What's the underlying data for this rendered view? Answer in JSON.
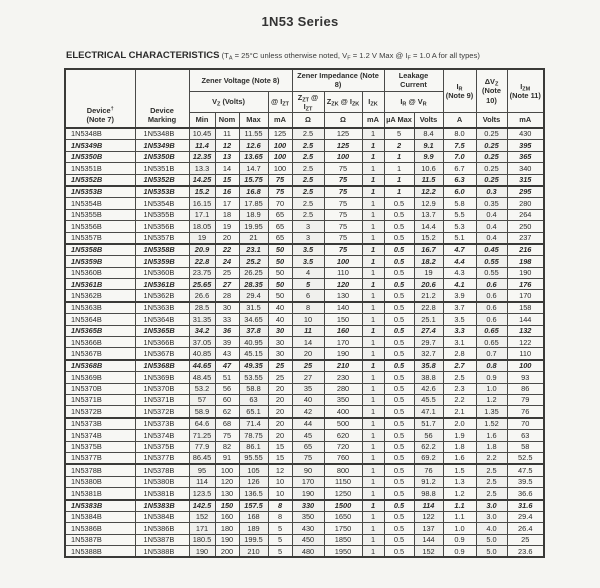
{
  "title": "1N53 Series",
  "section": {
    "heading": "ELECTRICAL CHARACTERISTICS",
    "conditions_html": "(T<sub>A</sub> = 25°C unless otherwise noted, V<sub>F</sub> = 1.2 V Max @ I<sub>F</sub> = 1.0 A for all types)"
  },
  "table": {
    "header": {
      "device_html": "Device<sup>†</sup><br>(Note 7)",
      "marking_html": "Device<br>Marking",
      "zener_voltage_html": "Zener Voltage (Note 8)",
      "vz_volts_html": "V<sub>Z</sub> (Volts)",
      "at_izt_html": "@ I<sub>ZT</sub>",
      "zener_impedance_html": "Zener Impedance (Note 8)",
      "zzt_html": "Z<sub>ZT</sub> @ I<sub>ZT</sub>",
      "zzk_html": "Z<sub>ZK</sub> @ I<sub>ZK</sub>",
      "izk_html": "I<sub>ZK</sub>",
      "leakage_html": "Leakage<br>Current",
      "ir_vr_html": "I<sub>R</sub> @ V<sub>R</sub>",
      "ir_note_html": "I<sub>R</sub><br>(Note 9)",
      "dvz_note_html": "ΔV<sub>Z</sub><br>(Note<br>10)",
      "izm_note_html": "I<sub>ZM</sub><br>(Note 11)",
      "units": {
        "min": "Min",
        "nom": "Nom",
        "max": "Max",
        "ma1": "mA",
        "ohm1": "Ω",
        "ohm2": "Ω",
        "ma2": "mA",
        "ua_max": "µA Max",
        "volts1": "Volts",
        "a": "A",
        "volts2": "Volts",
        "ma3": "mA"
      }
    },
    "col_keys": [
      "device",
      "marking",
      "vz-min",
      "vz-nom",
      "vz-max",
      "izt-ma",
      "zzt-ohm",
      "zzk-ohm",
      "izk-ma",
      "ir-ua-max",
      "vr-volts",
      "ir-a",
      "dvz-volts",
      "izm-ma"
    ],
    "rows": [
      {
        "cells": [
          "1N5348B",
          "1N5348B",
          "10.45",
          "11",
          "11.55",
          "125",
          "2.5",
          "125",
          "1",
          "5",
          "8.4",
          "8.0",
          "0.25",
          "430"
        ]
      },
      {
        "cells": [
          "1N5349B",
          "1N5349B",
          "11.4",
          "12",
          "12.6",
          "100",
          "2.5",
          "125",
          "1",
          "2",
          "9.1",
          "7.5",
          "0.25",
          "395"
        ],
        "bold": true
      },
      {
        "cells": [
          "1N5350B",
          "1N5350B",
          "12.35",
          "13",
          "13.65",
          "100",
          "2.5",
          "100",
          "1",
          "1",
          "9.9",
          "7.0",
          "0.25",
          "365"
        ],
        "bold": true
      },
      {
        "cells": [
          "1N5351B",
          "1N5351B",
          "13.3",
          "14",
          "14.7",
          "100",
          "2.5",
          "75",
          "1",
          "1",
          "10.6",
          "6.7",
          "0.25",
          "340"
        ]
      },
      {
        "cells": [
          "1N5352B",
          "1N5352B",
          "14.25",
          "15",
          "15.75",
          "75",
          "2.5",
          "75",
          "1",
          "1",
          "11.5",
          "6.3",
          "0.25",
          "315"
        ],
        "bold": true
      },
      {
        "cells": [
          "1N5353B",
          "1N5353B",
          "15.2",
          "16",
          "16.8",
          "75",
          "2.5",
          "75",
          "1",
          "1",
          "12.2",
          "6.0",
          "0.3",
          "295"
        ],
        "bold": true,
        "group_start": true
      },
      {
        "cells": [
          "1N5354B",
          "1N5354B",
          "16.15",
          "17",
          "17.85",
          "70",
          "2.5",
          "75",
          "1",
          "0.5",
          "12.9",
          "5.8",
          "0.35",
          "280"
        ]
      },
      {
        "cells": [
          "1N5355B",
          "1N5355B",
          "17.1",
          "18",
          "18.9",
          "65",
          "2.5",
          "75",
          "1",
          "0.5",
          "13.7",
          "5.5",
          "0.4",
          "264"
        ]
      },
      {
        "cells": [
          "1N5356B",
          "1N5356B",
          "18.05",
          "19",
          "19.95",
          "65",
          "3",
          "75",
          "1",
          "0.5",
          "14.4",
          "5.3",
          "0.4",
          "250"
        ]
      },
      {
        "cells": [
          "1N5357B",
          "1N5357B",
          "19",
          "20",
          "21",
          "65",
          "3",
          "75",
          "1",
          "0.5",
          "15.2",
          "5.1",
          "0.4",
          "237"
        ]
      },
      {
        "cells": [
          "1N5358B",
          "1N5358B",
          "20.9",
          "22",
          "23.1",
          "50",
          "3.5",
          "75",
          "1",
          "0.5",
          "16.7",
          "4.7",
          "0.45",
          "216"
        ],
        "bold": true,
        "group_start": true
      },
      {
        "cells": [
          "1N5359B",
          "1N5359B",
          "22.8",
          "24",
          "25.2",
          "50",
          "3.5",
          "100",
          "1",
          "0.5",
          "18.2",
          "4.4",
          "0.55",
          "198"
        ],
        "bold": true
      },
      {
        "cells": [
          "1N5360B",
          "1N5360B",
          "23.75",
          "25",
          "26.25",
          "50",
          "4",
          "110",
          "1",
          "0.5",
          "19",
          "4.3",
          "0.55",
          "190"
        ]
      },
      {
        "cells": [
          "1N5361B",
          "1N5361B",
          "25.65",
          "27",
          "28.35",
          "50",
          "5",
          "120",
          "1",
          "0.5",
          "20.6",
          "4.1",
          "0.6",
          "176"
        ],
        "bold": true
      },
      {
        "cells": [
          "1N5362B",
          "1N5362B",
          "26.6",
          "28",
          "29.4",
          "50",
          "6",
          "130",
          "1",
          "0.5",
          "21.2",
          "3.9",
          "0.6",
          "170"
        ]
      },
      {
        "cells": [
          "1N5363B",
          "1N5363B",
          "28.5",
          "30",
          "31.5",
          "40",
          "8",
          "140",
          "1",
          "0.5",
          "22.8",
          "3.7",
          "0.6",
          "158"
        ],
        "group_start": true
      },
      {
        "cells": [
          "1N5364B",
          "1N5364B",
          "31.35",
          "33",
          "34.65",
          "40",
          "10",
          "150",
          "1",
          "0.5",
          "25.1",
          "3.5",
          "0.6",
          "144"
        ]
      },
      {
        "cells": [
          "1N5365B",
          "1N5365B",
          "34.2",
          "36",
          "37.8",
          "30",
          "11",
          "160",
          "1",
          "0.5",
          "27.4",
          "3.3",
          "0.65",
          "132"
        ],
        "bold": true
      },
      {
        "cells": [
          "1N5366B",
          "1N5366B",
          "37.05",
          "39",
          "40.95",
          "30",
          "14",
          "170",
          "1",
          "0.5",
          "29.7",
          "3.1",
          "0.65",
          "122"
        ]
      },
      {
        "cells": [
          "1N5367B",
          "1N5367B",
          "40.85",
          "43",
          "45.15",
          "30",
          "20",
          "190",
          "1",
          "0.5",
          "32.7",
          "2.8",
          "0.7",
          "110"
        ]
      },
      {
        "cells": [
          "1N5368B",
          "1N5368B",
          "44.65",
          "47",
          "49.35",
          "25",
          "25",
          "210",
          "1",
          "0.5",
          "35.8",
          "2.7",
          "0.8",
          "100"
        ],
        "bold": true,
        "group_start": true
      },
      {
        "cells": [
          "1N5369B",
          "1N5369B",
          "48.45",
          "51",
          "53.55",
          "25",
          "27",
          "230",
          "1",
          "0.5",
          "38.8",
          "2.5",
          "0.9",
          "93"
        ]
      },
      {
        "cells": [
          "1N5370B",
          "1N5370B",
          "53.2",
          "56",
          "58.8",
          "20",
          "35",
          "280",
          "1",
          "0.5",
          "42.6",
          "2.3",
          "1.0",
          "86"
        ]
      },
      {
        "cells": [
          "1N5371B",
          "1N5371B",
          "57",
          "60",
          "63",
          "20",
          "40",
          "350",
          "1",
          "0.5",
          "45.5",
          "2.2",
          "1.2",
          "79"
        ]
      },
      {
        "cells": [
          "1N5372B",
          "1N5372B",
          "58.9",
          "62",
          "65.1",
          "20",
          "42",
          "400",
          "1",
          "0.5",
          "47.1",
          "2.1",
          "1.35",
          "76"
        ]
      },
      {
        "cells": [
          "1N5373B",
          "1N5373B",
          "64.6",
          "68",
          "71.4",
          "20",
          "44",
          "500",
          "1",
          "0.5",
          "51.7",
          "2.0",
          "1.52",
          "70"
        ],
        "group_start": true
      },
      {
        "cells": [
          "1N5374B",
          "1N5374B",
          "71.25",
          "75",
          "78.75",
          "20",
          "45",
          "620",
          "1",
          "0.5",
          "56",
          "1.9",
          "1.6",
          "63"
        ]
      },
      {
        "cells": [
          "1N5375B",
          "1N5375B",
          "77.9",
          "82",
          "86.1",
          "15",
          "65",
          "720",
          "1",
          "0.5",
          "62.2",
          "1.8",
          "1.8",
          "58"
        ]
      },
      {
        "cells": [
          "1N5377B",
          "1N5377B",
          "86.45",
          "91",
          "95.55",
          "15",
          "75",
          "760",
          "1",
          "0.5",
          "69.2",
          "1.6",
          "2.2",
          "52.5"
        ]
      },
      {
        "cells": [
          "1N5378B",
          "1N5378B",
          "95",
          "100",
          "105",
          "12",
          "90",
          "800",
          "1",
          "0.5",
          "76",
          "1.5",
          "2.5",
          "47.5"
        ],
        "group_start": true
      },
      {
        "cells": [
          "1N5380B",
          "1N5380B",
          "114",
          "120",
          "126",
          "10",
          "170",
          "1150",
          "1",
          "0.5",
          "91.2",
          "1.3",
          "2.5",
          "39.5"
        ]
      },
      {
        "cells": [
          "1N5381B",
          "1N5381B",
          "123.5",
          "130",
          "136.5",
          "10",
          "190",
          "1250",
          "1",
          "0.5",
          "98.8",
          "1.2",
          "2.5",
          "36.6"
        ]
      },
      {
        "cells": [
          "1N5383B",
          "1N5383B",
          "142.5",
          "150",
          "157.5",
          "8",
          "330",
          "1500",
          "1",
          "0.5",
          "114",
          "1.1",
          "3.0",
          "31.6"
        ],
        "bold": true,
        "group_start": true
      },
      {
        "cells": [
          "1N5384B",
          "1N5384B",
          "152",
          "160",
          "168",
          "8",
          "350",
          "1650",
          "1",
          "0.5",
          "122",
          "1.1",
          "3.0",
          "29.4"
        ]
      },
      {
        "cells": [
          "1N5386B",
          "1N5386B",
          "171",
          "180",
          "189",
          "5",
          "430",
          "1750",
          "1",
          "0.5",
          "137",
          "1.0",
          "4.0",
          "26.4"
        ]
      },
      {
        "cells": [
          "1N5387B",
          "1N5387B",
          "180.5",
          "190",
          "199.5",
          "5",
          "450",
          "1850",
          "1",
          "0.5",
          "144",
          "0.9",
          "5.0",
          "25"
        ]
      },
      {
        "cells": [
          "1N5388B",
          "1N5388B",
          "190",
          "200",
          "210",
          "5",
          "480",
          "1950",
          "1",
          "0.5",
          "152",
          "0.9",
          "5.0",
          "23.6"
        ]
      }
    ]
  }
}
